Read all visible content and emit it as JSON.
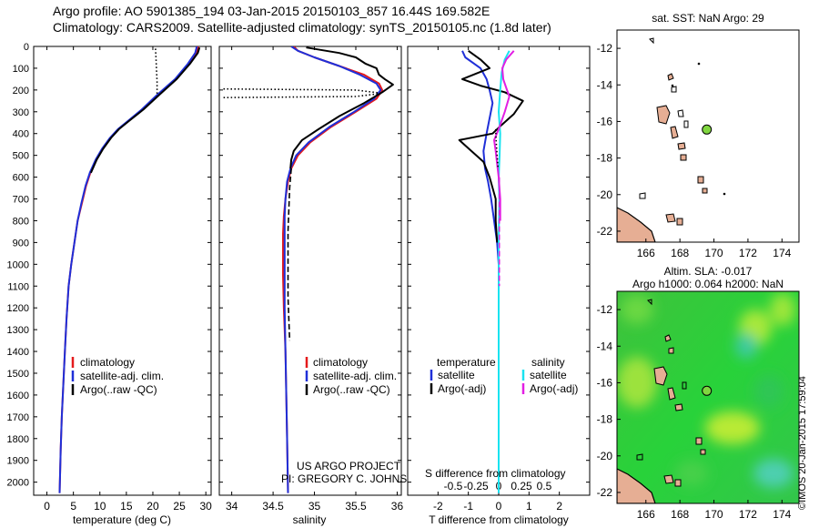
{
  "header": {
    "line1": "Argo profile: AO 5901385_194 03-Jan-2015 20150103_857 16.44S 169.582E",
    "line2": "Climatology: CARS2009. Satellite-adjusted climatology: synTS_20150105.nc (1.8d later)"
  },
  "stamp": "©IMOS 20-Jan-2015 17:59:04",
  "colors": {
    "red": "#e41a1c",
    "blue": "#1f2fd8",
    "black": "#000000",
    "cyan": "#19e3f0",
    "magenta": "#e21fe3",
    "land": "#e6ae94",
    "marker": "#80d640"
  },
  "depth_axis": {
    "ticks": [
      0,
      100,
      200,
      300,
      400,
      500,
      600,
      700,
      800,
      900,
      1000,
      1100,
      1200,
      1300,
      1400,
      1500,
      1600,
      1700,
      1800,
      1900,
      2000
    ],
    "range": [
      0,
      2060
    ]
  },
  "chart_data": [
    {
      "type": "line",
      "name": "temperature",
      "xlabel": "temperature (deg C)",
      "xticks": [
        0,
        5,
        10,
        15,
        20,
        25,
        30
      ],
      "xlim": [
        -2.5,
        31
      ],
      "legend": [
        "climatology",
        "satellite-adj. clim.",
        "Argo(..raw -QC)"
      ],
      "series": [
        {
          "name": "climatology",
          "color": "red",
          "style": "solid",
          "x": [
            28.6,
            28.2,
            26.8,
            24.3,
            21.0,
            18.0,
            15.5,
            13.5,
            12.0,
            10.5,
            9.3,
            8.2,
            7.4,
            6.6,
            5.8,
            5.2,
            4.6,
            4.1,
            3.7,
            3.4,
            3.1,
            2.8,
            2.6,
            2.4
          ],
          "y": [
            0,
            30,
            80,
            150,
            220,
            290,
            340,
            380,
            420,
            470,
            520,
            580,
            640,
            720,
            800,
            900,
            1000,
            1100,
            1250,
            1400,
            1550,
            1700,
            1850,
            2050
          ]
        },
        {
          "name": "satellite-adj. clim.",
          "color": "blue",
          "style": "solid",
          "x": [
            28.3,
            28.0,
            26.6,
            24.2,
            20.9,
            17.9,
            15.4,
            13.4,
            11.9,
            10.4,
            9.2,
            8.1,
            7.3,
            6.5,
            5.8,
            5.2,
            4.6,
            4.1,
            3.7,
            3.4,
            3.1,
            2.8,
            2.6,
            2.4
          ],
          "y": [
            0,
            30,
            80,
            150,
            220,
            290,
            340,
            380,
            420,
            470,
            520,
            580,
            640,
            720,
            800,
            900,
            1000,
            1100,
            1250,
            1400,
            1550,
            1700,
            1850,
            2050
          ]
        },
        {
          "name": "Argo raw",
          "color": "black",
          "style": "solid",
          "x": [
            28.8,
            28.5,
            27.0,
            24.5,
            21.3,
            18.2,
            15.6,
            13.6,
            12.1,
            10.6,
            9.4,
            8.3
          ],
          "y": [
            5,
            30,
            80,
            150,
            220,
            290,
            340,
            380,
            420,
            470,
            520,
            580
          ]
        },
        {
          "name": "Argo -QC",
          "color": "black",
          "style": "dotted",
          "x": [
            20.5,
            20.6,
            20.7,
            20.8,
            20.8,
            20.8
          ],
          "y": [
            10,
            60,
            110,
            160,
            200,
            230
          ]
        }
      ]
    },
    {
      "type": "line",
      "name": "salinity",
      "xlabel": "salinity",
      "xticks": [
        34,
        34.5,
        35,
        35.5,
        36
      ],
      "xtick_labels": [
        "34",
        "34.5",
        "35",
        "35.5",
        "36"
      ],
      "xlim": [
        33.85,
        36.05
      ],
      "legend": [
        "climatology",
        "satellite-adj. clim.",
        "Argo(..raw -QC)"
      ],
      "annotation_lines": [
        "US ARGO PROJECT",
        "PI: GREGORY C. JOHNSON"
      ],
      "series": [
        {
          "name": "climatology",
          "color": "red",
          "style": "solid",
          "x": [
            34.75,
            34.8,
            35.0,
            35.3,
            35.6,
            35.78,
            35.82,
            35.75,
            35.5,
            35.2,
            34.95,
            34.8,
            34.72,
            34.68,
            34.65,
            34.63,
            34.62,
            34.62,
            34.62,
            34.63,
            34.65,
            34.66,
            34.67,
            34.68
          ],
          "y": [
            0,
            20,
            50,
            90,
            130,
            170,
            200,
            240,
            300,
            370,
            440,
            500,
            560,
            620,
            700,
            780,
            860,
            950,
            1050,
            1200,
            1400,
            1600,
            1800,
            2050
          ]
        },
        {
          "name": "satellite-adj. clim.",
          "color": "blue",
          "style": "solid",
          "x": [
            34.72,
            34.8,
            35.0,
            35.3,
            35.55,
            35.75,
            35.8,
            35.72,
            35.48,
            35.18,
            34.93,
            34.78,
            34.71,
            34.67,
            34.65,
            34.64,
            34.64,
            34.64,
            34.64,
            34.64,
            34.65,
            34.66,
            34.67,
            34.68
          ],
          "y": [
            0,
            20,
            50,
            90,
            130,
            170,
            200,
            240,
            300,
            370,
            440,
            500,
            560,
            620,
            700,
            780,
            860,
            950,
            1050,
            1200,
            1400,
            1600,
            1800,
            2050
          ]
        },
        {
          "name": "Argo raw",
          "color": "black",
          "style": "solid",
          "x": [
            34.9,
            35.3,
            35.5,
            35.62,
            35.75,
            35.78,
            35.85,
            35.95,
            35.82,
            35.6,
            35.3,
            35.05,
            34.85,
            34.75,
            34.72,
            34.71
          ],
          "y": [
            5,
            30,
            50,
            80,
            100,
            130,
            150,
            175,
            210,
            260,
            320,
            380,
            430,
            480,
            520,
            560
          ]
        },
        {
          "name": "Argo -QC",
          "color": "black",
          "style": "dashed",
          "x": [
            34.72,
            34.7,
            34.69,
            34.68,
            34.68,
            34.68,
            34.68,
            34.69,
            34.7
          ],
          "y": [
            560,
            650,
            750,
            850,
            950,
            1050,
            1150,
            1250,
            1350
          ]
        },
        {
          "name": "Argo -QC top",
          "color": "black",
          "style": "dotted",
          "x": [
            33.9,
            35.5,
            35.82,
            35.5,
            33.9
          ],
          "y": [
            195,
            200,
            215,
            230,
            235
          ]
        }
      ]
    },
    {
      "type": "line",
      "name": "difference",
      "xlabel": "T difference from climatology",
      "secondary_label": "S difference from climatology",
      "xticks": [
        -2,
        -1,
        0,
        1,
        2
      ],
      "xtick_labels": [
        "-2",
        "-1",
        "0",
        "1",
        "2"
      ],
      "sticks": [
        -0.5,
        -0.25,
        0,
        0.25,
        0.5
      ],
      "stick_labels": [
        "-0.5",
        "-0.25",
        "0",
        "0.25",
        "0.5"
      ],
      "xlim": [
        -3.0,
        3.0
      ],
      "legend_groups": [
        {
          "title": "temperature",
          "items": [
            "satellite",
            "Argo(-adj)"
          ]
        },
        {
          "title": "salinity",
          "items": [
            "satellite",
            "Argo(-adj)"
          ]
        }
      ],
      "series": [
        {
          "name": "T satellite",
          "color": "blue",
          "style": "solid",
          "x": [
            -1.2,
            -1.1,
            -0.6,
            -0.4,
            -0.3,
            -0.2,
            -0.3,
            -0.4,
            -0.5,
            -0.45,
            -0.35,
            -0.25,
            -0.15,
            -0.05,
            0,
            0,
            0
          ],
          "y": [
            20,
            50,
            100,
            150,
            200,
            260,
            330,
            400,
            480,
            560,
            620,
            700,
            800,
            900,
            1000,
            1400,
            2050
          ]
        },
        {
          "name": "T Argo",
          "color": "black",
          "style": "solid",
          "x": [
            -1.0,
            -0.6,
            -0.3,
            -1.2,
            -0.6,
            0.2,
            0.8,
            0.5,
            0.1,
            -0.2,
            -1.3,
            -0.9,
            -0.5,
            -0.3,
            -0.1,
            -0.1,
            -0.05
          ],
          "y": [
            20,
            60,
            100,
            150,
            180,
            210,
            250,
            310,
            360,
            400,
            430,
            480,
            530,
            600,
            700,
            800,
            900
          ]
        },
        {
          "name": "S satellite",
          "color": "cyan",
          "style": "solid",
          "x": [
            0.35,
            0.2,
            0.1,
            0.05,
            0.0,
            0.05,
            0.03,
            0.0,
            0.02,
            0.0,
            0.0,
            0.0,
            0.0,
            0.0
          ],
          "y": [
            20,
            60,
            120,
            200,
            300,
            400,
            500,
            600,
            700,
            900,
            1100,
            1400,
            1800,
            2050
          ]
        },
        {
          "name": "S Argo",
          "color": "magenta",
          "style": "solid",
          "x": [
            0.5,
            0.25,
            0.12,
            0.15,
            0.25,
            0.35,
            0.2,
            0.0,
            -0.15,
            -0.1,
            -0.05,
            0.0,
            0.05,
            0.05
          ],
          "y": [
            20,
            60,
            100,
            150,
            190,
            230,
            300,
            380,
            430,
            480,
            540,
            600,
            700,
            800
          ]
        },
        {
          "name": "S Argo -QC",
          "color": "magenta",
          "style": "dashed",
          "x": [
            0.02,
            0.02,
            0.02,
            0.02,
            0.02,
            0.02
          ],
          "y": [
            600,
            700,
            800,
            900,
            1000,
            1100
          ]
        },
        {
          "name": "S Argo dotted",
          "color": "black",
          "style": "dotted",
          "x": [
            -0.1,
            -0.08,
            -0.05,
            -0.02
          ],
          "y": [
            380,
            440,
            500,
            560
          ]
        }
      ]
    },
    {
      "type": "scatter",
      "name": "map-sst",
      "title": "sat. SST: NaN Argo: 29",
      "xticks": [
        166,
        168,
        170,
        172,
        174
      ],
      "yticks": [
        -12,
        -14,
        -16,
        -18,
        -20,
        -22
      ],
      "xlim": [
        164.3,
        175.0
      ],
      "ylim": [
        -22.6,
        -11.0
      ],
      "point": {
        "lon": 169.582,
        "lat": -16.44
      }
    },
    {
      "type": "heatmap",
      "name": "map-sla",
      "title_line1": "Altim. SLA: -0.017",
      "title_line2": "Argo h1000: 0.064 h2000: NaN",
      "xticks": [
        166,
        168,
        170,
        172,
        174
      ],
      "yticks": [
        -12,
        -14,
        -16,
        -18,
        -20,
        -22
      ],
      "xlim": [
        164.3,
        175.0
      ],
      "ylim": [
        -22.6,
        -11.0
      ],
      "point": {
        "lon": 169.582,
        "lat": -16.44
      }
    }
  ]
}
